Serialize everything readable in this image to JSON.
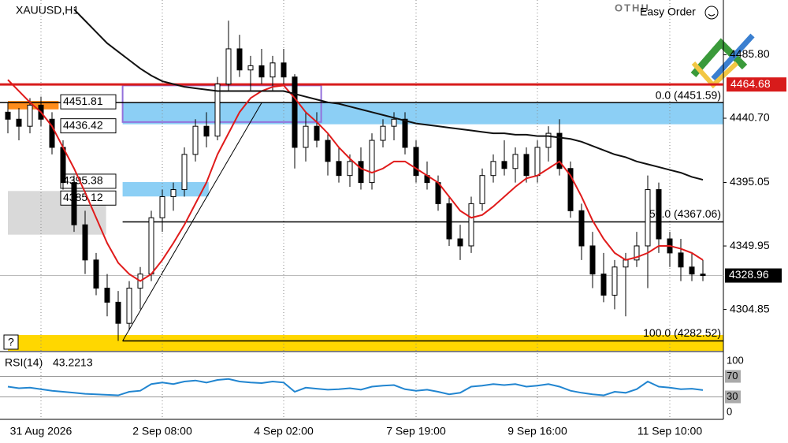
{
  "header": {
    "symbol": "XAUUSD,H1",
    "logo": "OTHU",
    "easy_order": "Easy Order",
    "help": "?"
  },
  "chart_data": {
    "type": "candlestick",
    "categories": [
      null,
      null,
      null,
      "31 Aug 2026",
      null,
      null,
      null,
      null,
      null,
      null,
      null,
      null,
      null,
      null,
      "2 Sep 08:00",
      null,
      null,
      null,
      null,
      null,
      null,
      null,
      null,
      null,
      null,
      "4 Sep 02:00",
      null,
      null,
      null,
      null,
      null,
      null,
      null,
      null,
      null,
      null,
      null,
      "7 Sep 19:00",
      null,
      null,
      null,
      null,
      null,
      null,
      null,
      null,
      null,
      null,
      "9 Sep 16:00",
      null,
      null,
      null,
      null,
      null,
      null,
      null,
      null,
      null,
      null,
      null,
      "11 Sep 10:00",
      null,
      null,
      null
    ],
    "open": [
      4445,
      4440,
      4435,
      4450,
      4440,
      4420,
      4395,
      4365,
      4340,
      4320,
      4310,
      4295,
      4320,
      4330,
      4370,
      4385,
      4390,
      4415,
      4435,
      4428,
      4465,
      4490,
      4475,
      4478,
      4470,
      4480,
      4470,
      4420,
      4435,
      4425,
      4410,
      4400,
      4410,
      4395,
      4425,
      4435,
      4440,
      4420,
      4400,
      4395,
      4380,
      4355,
      4350,
      4380,
      4400,
      4410,
      4405,
      4415,
      4400,
      4420,
      4430,
      4405,
      4375,
      4350,
      4330,
      4315,
      4335,
      4340,
      4350,
      4390,
      4355,
      4345,
      4335,
      4330
    ],
    "high": [
      4452,
      4448,
      4455,
      4456,
      4445,
      4425,
      4400,
      4375,
      4345,
      4330,
      4318,
      4325,
      4335,
      4375,
      4390,
      4395,
      4420,
      4440,
      4445,
      4470,
      4510,
      4500,
      4485,
      4490,
      4485,
      4490,
      4472,
      4445,
      4445,
      4430,
      4420,
      4415,
      4420,
      4430,
      4440,
      4445,
      4445,
      4425,
      4410,
      4400,
      4385,
      4365,
      4385,
      4405,
      4415,
      4425,
      4420,
      4420,
      4425,
      4435,
      4440,
      4410,
      4380,
      4360,
      4345,
      4340,
      4345,
      4360,
      4400,
      4395,
      4360,
      4355,
      4345,
      4340
    ],
    "low": [
      4430,
      4425,
      4430,
      4435,
      4415,
      4390,
      4360,
      4330,
      4315,
      4300,
      4282.52,
      4290,
      4305,
      4325,
      4360,
      4375,
      4385,
      4410,
      4420,
      4425,
      4460,
      4470,
      4460,
      4465,
      4460,
      4465,
      4405,
      4410,
      4420,
      4400,
      4395,
      4392,
      4390,
      4390,
      4420,
      4425,
      4415,
      4395,
      4390,
      4375,
      4350,
      4340,
      4345,
      4375,
      4395,
      4400,
      4395,
      4395,
      4395,
      4410,
      4400,
      4370,
      4340,
      4320,
      4310,
      4305,
      4300,
      4335,
      4320,
      4345,
      4335,
      4325,
      4325,
      4325
    ],
    "close": [
      4440,
      4435,
      4450,
      4440,
      4420,
      4395,
      4365,
      4340,
      4320,
      4310,
      4295,
      4320,
      4330,
      4370,
      4385,
      4390,
      4415,
      4435,
      4428,
      4465,
      4490,
      4475,
      4478,
      4470,
      4480,
      4470,
      4420,
      4435,
      4425,
      4410,
      4400,
      4410,
      4395,
      4425,
      4435,
      4440,
      4420,
      4400,
      4395,
      4380,
      4355,
      4350,
      4380,
      4400,
      4410,
      4405,
      4415,
      4400,
      4420,
      4430,
      4405,
      4375,
      4350,
      4330,
      4315,
      4335,
      4340,
      4350,
      4390,
      4355,
      4345,
      4335,
      4330,
      4328.96
    ],
    "ma": [
      {
        "color": "#e01b1b",
        "values": [
          4468,
          4460,
          4452,
          4445,
          4435,
          4420,
          4405,
          4388,
          4370,
          4352,
          4338,
          4330,
          4325,
          4330,
          4340,
          4352,
          4365,
          4380,
          4395,
          4415,
          4430,
          4445,
          4455,
          4460,
          4463,
          4464,
          4455,
          4445,
          4438,
          4430,
          4420,
          4412,
          4405,
          4402,
          4405,
          4410,
          4410,
          4405,
          4400,
          4395,
          4385,
          4375,
          4370,
          4372,
          4378,
          4385,
          4392,
          4398,
          4400,
          4405,
          4410,
          4400,
          4385,
          4368,
          4355,
          4345,
          4340,
          4342,
          4345,
          4350,
          4350,
          4348,
          4345,
          4340
        ]
      },
      {
        "color": "#111111",
        "values": [
          null,
          null,
          null,
          null,
          null,
          null,
          4518,
          4510,
          4502,
          4494,
          4488,
          4482,
          4476,
          4471,
          4467,
          4465,
          4463,
          4462,
          4461,
          4460,
          4460,
          4460,
          4460,
          4460,
          4460,
          4460,
          4458,
          4456,
          4454,
          4452,
          4451,
          4449,
          4447,
          4445,
          4443,
          4441,
          4439,
          4437,
          4436,
          4435,
          4434,
          4433,
          4432,
          4431,
          4430,
          4430,
          4429,
          4429,
          4428,
          4428,
          4427,
          4426,
          4424,
          4421,
          4418,
          4415,
          4413,
          4410,
          4408,
          4406,
          4404,
          4402,
          4399,
          4397
        ]
      }
    ],
    "ylim": [
      4275.5,
      4524.7
    ],
    "yticks": [
      {
        "value": 4485.8,
        "label": "4485.80"
      },
      {
        "value": 4440.7,
        "label": "4440.70"
      },
      {
        "value": 4395.05,
        "label": "4395.05"
      },
      {
        "value": 4349.95,
        "label": "4349.95"
      },
      {
        "value": 4304.85,
        "label": "4304.85"
      }
    ],
    "last_price": 4328.96,
    "red_level": {
      "value": 4464.68,
      "color": "#d81b1b"
    },
    "zones": [
      {
        "top": 4453,
        "bottom": 4447,
        "color": "#ff8c1a",
        "from": 0,
        "to": 4.6
      },
      {
        "top": 4389,
        "bottom": 4358,
        "color": "#d9d9d9",
        "from": 0,
        "to": 8.9
      },
      {
        "top": 4286.7,
        "bottom": 4275.5,
        "color": "#ffd700",
        "from": 0,
        "to": 65
      },
      {
        "top": 4451.81,
        "bottom": 4436.42,
        "color": "#8ccff5",
        "from": 10.4,
        "to": 65
      },
      {
        "top": 4395.38,
        "bottom": 4385.12,
        "color": "#8ccff5",
        "from": 10.4,
        "to": 18.2
      },
      {
        "top": 4464,
        "bottom": 4438,
        "color": "#9370db",
        "from": 10.4,
        "to": 28.4,
        "outline": true
      }
    ],
    "box_labels": [
      4451.81,
      4436.42,
      4395.38,
      4385.12
    ],
    "fib": [
      {
        "value": 4451.59,
        "label": "0.0 (4451.59)"
      },
      {
        "value": 4367.06,
        "label": "50.0 (4367.06)"
      },
      {
        "value": 4282.52,
        "label": "100.0 (4282.52)"
      }
    ],
    "rsi": {
      "title": "RSI(14)",
      "color": "#2185d0",
      "ylim": [
        0,
        100
      ],
      "yticks": [
        100,
        70,
        30,
        0
      ],
      "values": [
        50,
        47,
        48,
        45,
        42,
        40,
        38,
        36,
        35,
        34,
        33,
        40,
        42,
        55,
        58,
        55,
        60,
        62,
        58,
        63,
        65,
        60,
        58,
        57,
        60,
        58,
        40,
        48,
        46,
        44,
        45,
        47,
        44,
        50,
        52,
        53,
        45,
        42,
        44,
        40,
        35,
        38,
        50,
        52,
        55,
        53,
        55,
        50,
        52,
        55,
        50,
        42,
        38,
        35,
        33,
        40,
        38,
        45,
        60,
        50,
        48,
        45,
        46,
        43.2213
      ]
    }
  }
}
